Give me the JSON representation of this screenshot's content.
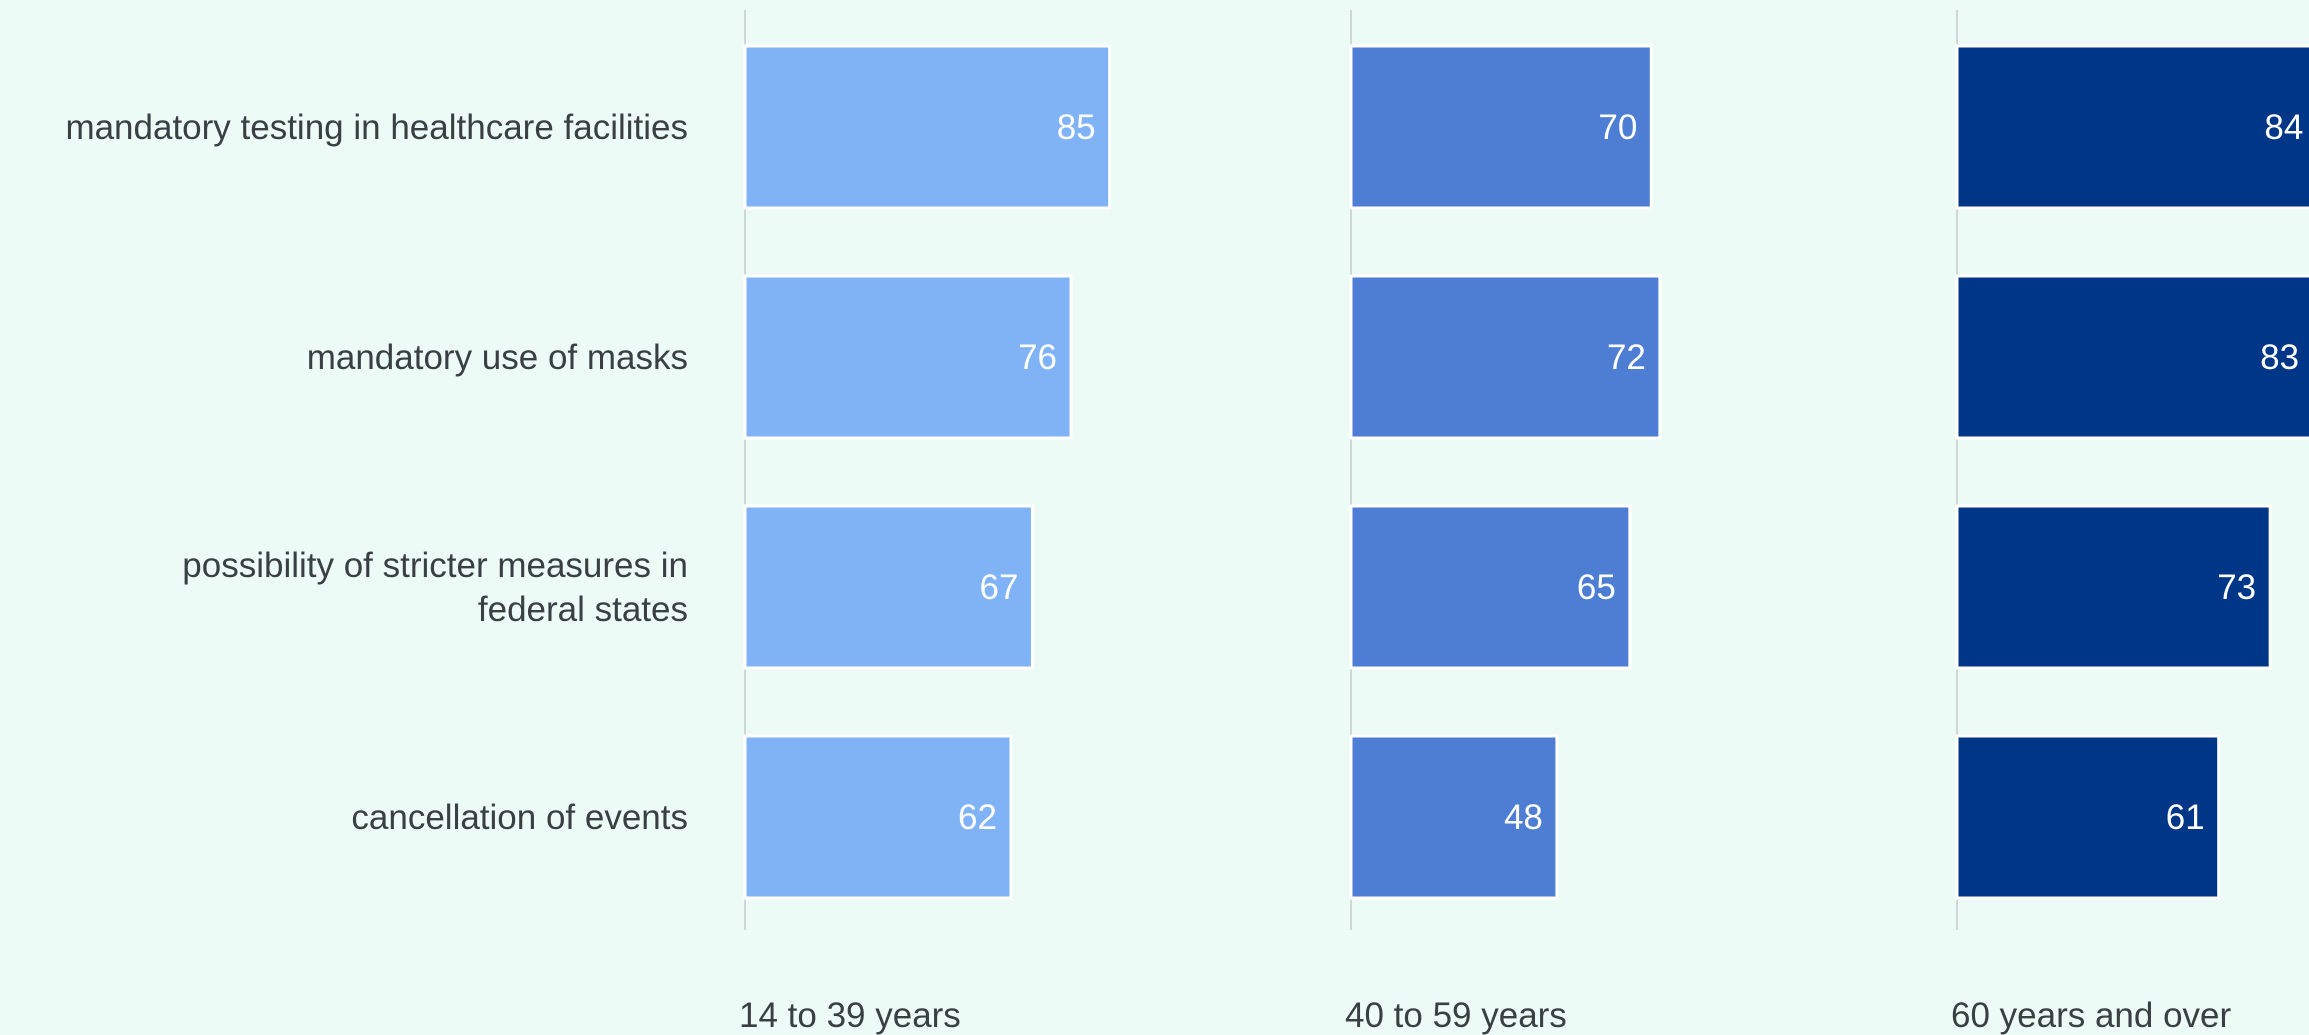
{
  "chart_data": {
    "type": "bar",
    "orientation": "horizontal",
    "categories": [
      [
        "mandatory testing in healthcare facilities"
      ],
      [
        "mandatory use of masks"
      ],
      [
        "possibility of stricter measures in",
        "federal states"
      ],
      [
        "cancellation of events"
      ]
    ],
    "series": [
      {
        "name": "14 to 39 years",
        "color": "#80b3f5",
        "values": [
          85,
          76,
          67,
          62
        ]
      },
      {
        "name": "40 to 59 years",
        "color": "#4e7ed3",
        "values": [
          70,
          72,
          65,
          48
        ]
      },
      {
        "name": "60 years and over",
        "color": "#003688",
        "values": [
          84,
          83,
          73,
          61
        ]
      }
    ],
    "xlim": [
      0,
      100
    ],
    "grid": false,
    "legend": "below-panels"
  }
}
